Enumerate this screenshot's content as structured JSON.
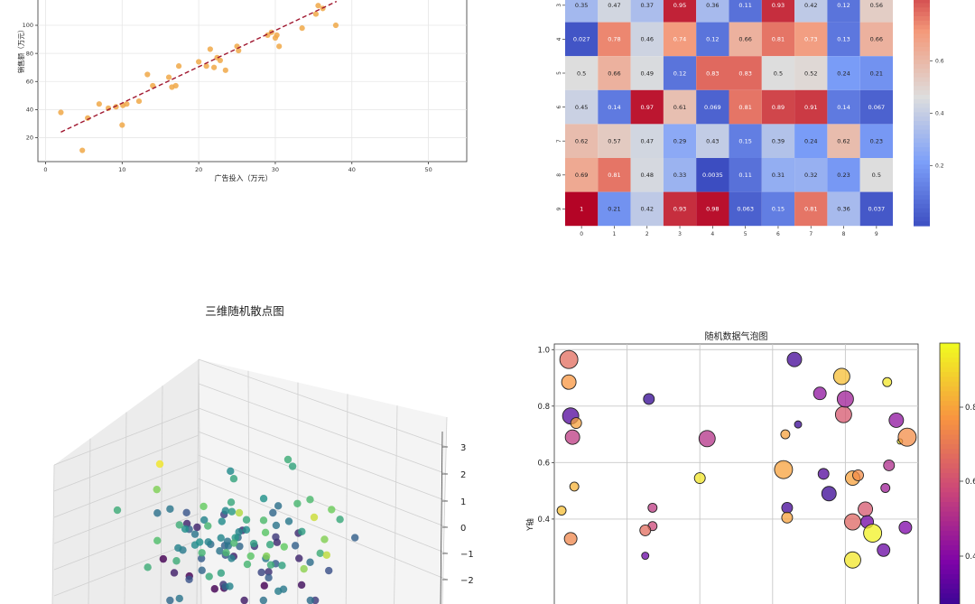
{
  "chart_data": [
    {
      "type": "scatter",
      "title": "",
      "xlabel": "广告投入（万元）",
      "ylabel": "销售额（万元）",
      "xlim": [
        -1,
        55
      ],
      "ylim": [
        3,
        118
      ],
      "xticks": [
        0,
        10,
        20,
        30,
        40,
        50
      ],
      "yticks": [
        20,
        40,
        60,
        80,
        100
      ],
      "grid": true,
      "point_color": "#f0a848",
      "fit_line_color": "#a01830",
      "series": [
        {
          "name": "",
          "x": [
            2,
            4.8,
            5.5,
            7,
            8.2,
            9.2,
            10,
            10.1,
            10.6,
            12.2,
            13.3,
            14,
            16.1,
            16.5,
            17,
            17.4,
            20,
            21,
            21.5,
            22,
            22.4,
            22.8,
            23.5,
            25,
            25.2,
            29,
            29.5,
            30,
            30.2,
            30.5,
            33.5,
            35.3,
            35.6,
            36.2,
            37.9
          ],
          "y": [
            38,
            11,
            34,
            44,
            41,
            42,
            29,
            43,
            44,
            46,
            65,
            57,
            63,
            56,
            57,
            71,
            74,
            71,
            83,
            70,
            77,
            75,
            68,
            85,
            82,
            93,
            95,
            91,
            93,
            85,
            98,
            108,
            114,
            112,
            100
          ]
        },
        {
          "name": "",
          "type": "line",
          "x": [
            2,
            38
          ],
          "y": [
            24,
            117
          ]
        }
      ]
    },
    {
      "type": "heatmap",
      "title": "",
      "x_categories": [
        "0",
        "1",
        "2",
        "3",
        "4",
        "5",
        "6",
        "7",
        "8",
        "9"
      ],
      "y_categories": [
        "3",
        "4",
        "5",
        "6",
        "7",
        "8",
        "9"
      ],
      "colormap": "coolwarm",
      "colorbar_ticks": [
        "0.2",
        "0.4",
        "0.6"
      ],
      "values": [
        [
          "0.35",
          "0.47",
          "0.37",
          "0.95",
          "0.36",
          "0.11",
          "0.93",
          "0.42",
          "0.12",
          "0.56"
        ],
        [
          "0.027",
          "0.78",
          "0.46",
          "0.74",
          "0.12",
          "0.66",
          "0.81",
          "0.73",
          "0.13",
          "0.66"
        ],
        [
          "0.5",
          "0.66",
          "0.49",
          "0.12",
          "0.83",
          "0.83",
          "0.5",
          "0.52",
          "0.24",
          "0.21"
        ],
        [
          "0.45",
          "0.14",
          "0.97",
          "0.61",
          "0.069",
          "0.81",
          "0.89",
          "0.91",
          "0.14",
          "0.067"
        ],
        [
          "0.62",
          "0.57",
          "0.47",
          "0.29",
          "0.43",
          "0.15",
          "0.39",
          "0.24",
          "0.62",
          "0.23"
        ],
        [
          "0.69",
          "0.81",
          "0.48",
          "0.33",
          "0.0035",
          "0.11",
          "0.31",
          "0.32",
          "0.23",
          "0.5"
        ],
        [
          "1",
          "0.21",
          "0.42",
          "0.93",
          "0.98",
          "0.063",
          "0.15",
          "0.81",
          "0.36",
          "0.037"
        ]
      ]
    },
    {
      "type": "scatter",
      "title": "三维随机散点图",
      "projection": "3d",
      "zticks": [
        "3",
        "2",
        "1",
        "0",
        "−1",
        "−2"
      ],
      "colormap": "viridis",
      "note_points_visible": "partial (view cropped)"
    },
    {
      "type": "scatter",
      "title": "随机数据气泡图",
      "ylabel": "Y轴",
      "xlabel": "",
      "xlim": [
        0,
        1
      ],
      "ylim": [
        0,
        1.02
      ],
      "yticks": [
        "0.4",
        "0.6",
        "0.8",
        "1.0"
      ],
      "colormap": "plasma",
      "colorbar_ticks": [
        "0.4",
        "0.6",
        "0.8"
      ],
      "grid": true,
      "points": [
        {
          "x": 0.04,
          "y": 0.965,
          "s": 10,
          "c": 0.62
        },
        {
          "x": 0.04,
          "y": 0.885,
          "s": 8,
          "c": 0.75
        },
        {
          "x": 0.045,
          "y": 0.765,
          "s": 9,
          "c": 0.15
        },
        {
          "x": 0.06,
          "y": 0.74,
          "s": 6,
          "c": 0.78
        },
        {
          "x": 0.05,
          "y": 0.69,
          "s": 8,
          "c": 0.45
        },
        {
          "x": 0.055,
          "y": 0.515,
          "s": 5,
          "c": 0.82
        },
        {
          "x": 0.02,
          "y": 0.43,
          "s": 5,
          "c": 0.85
        },
        {
          "x": 0.045,
          "y": 0.33,
          "s": 7,
          "c": 0.7
        },
        {
          "x": 0.26,
          "y": 0.825,
          "s": 6,
          "c": 0.08
        },
        {
          "x": 0.27,
          "y": 0.44,
          "s": 5,
          "c": 0.45
        },
        {
          "x": 0.27,
          "y": 0.375,
          "s": 5,
          "c": 0.5
        },
        {
          "x": 0.25,
          "y": 0.36,
          "s": 6,
          "c": 0.62
        },
        {
          "x": 0.25,
          "y": 0.27,
          "s": 4,
          "c": 0.2
        },
        {
          "x": 0.42,
          "y": 0.685,
          "s": 9,
          "c": 0.42
        },
        {
          "x": 0.4,
          "y": 0.545,
          "s": 6,
          "c": 0.95
        },
        {
          "x": 0.66,
          "y": 0.965,
          "s": 8,
          "c": 0.12
        },
        {
          "x": 0.67,
          "y": 0.735,
          "s": 4,
          "c": 0.1
        },
        {
          "x": 0.635,
          "y": 0.7,
          "s": 5,
          "c": 0.78
        },
        {
          "x": 0.63,
          "y": 0.575,
          "s": 10,
          "c": 0.78
        },
        {
          "x": 0.64,
          "y": 0.44,
          "s": 6,
          "c": 0.12
        },
        {
          "x": 0.64,
          "y": 0.405,
          "s": 6,
          "c": 0.78
        },
        {
          "x": 0.73,
          "y": 0.845,
          "s": 7,
          "c": 0.3
        },
        {
          "x": 0.74,
          "y": 0.56,
          "s": 6,
          "c": 0.15
        },
        {
          "x": 0.755,
          "y": 0.49,
          "s": 8,
          "c": 0.1
        },
        {
          "x": 0.79,
          "y": 0.905,
          "s": 9,
          "c": 0.85
        },
        {
          "x": 0.795,
          "y": 0.77,
          "s": 9,
          "c": 0.55
        },
        {
          "x": 0.8,
          "y": 0.825,
          "s": 9,
          "c": 0.35
        },
        {
          "x": 0.82,
          "y": 0.545,
          "s": 8,
          "c": 0.78
        },
        {
          "x": 0.835,
          "y": 0.555,
          "s": 6,
          "c": 0.72
        },
        {
          "x": 0.82,
          "y": 0.39,
          "s": 9,
          "c": 0.6
        },
        {
          "x": 0.855,
          "y": 0.435,
          "s": 8,
          "c": 0.55
        },
        {
          "x": 0.86,
          "y": 0.39,
          "s": 7,
          "c": 0.22
        },
        {
          "x": 0.875,
          "y": 0.35,
          "s": 10,
          "c": 0.98
        },
        {
          "x": 0.915,
          "y": 0.885,
          "s": 5,
          "c": 0.95
        },
        {
          "x": 0.91,
          "y": 0.51,
          "s": 5,
          "c": 0.35
        },
        {
          "x": 0.92,
          "y": 0.59,
          "s": 6,
          "c": 0.4
        },
        {
          "x": 0.94,
          "y": 0.75,
          "s": 8,
          "c": 0.3
        },
        {
          "x": 0.95,
          "y": 0.675,
          "s": 3,
          "c": 0.97
        },
        {
          "x": 0.965,
          "y": 0.37,
          "s": 7,
          "c": 0.25
        },
        {
          "x": 0.97,
          "y": 0.69,
          "s": 10,
          "c": 0.72
        },
        {
          "x": 0.905,
          "y": 0.29,
          "s": 7,
          "c": 0.2
        },
        {
          "x": 0.82,
          "y": 0.255,
          "s": 9,
          "c": 0.95
        }
      ]
    }
  ]
}
